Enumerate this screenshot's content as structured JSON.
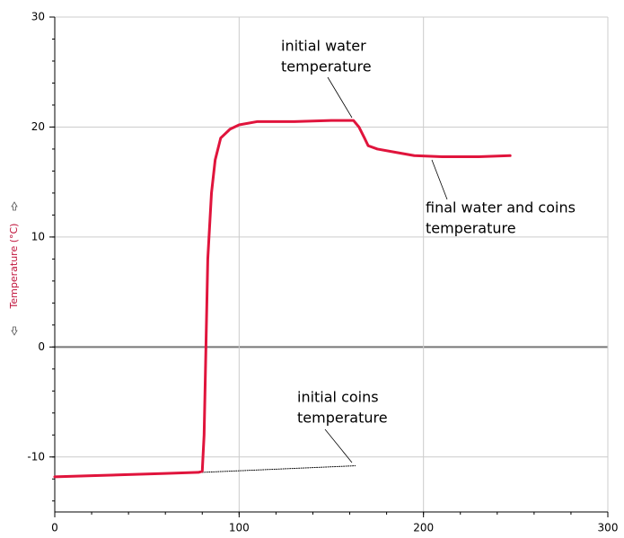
{
  "chart_data": {
    "type": "line",
    "ylabel": "Temperature (°C)",
    "xlim": [
      0,
      300
    ],
    "xticks": [
      0,
      100,
      200,
      300
    ],
    "ylim": [
      -15,
      30
    ],
    "yticks": [
      -10,
      0,
      10,
      20,
      30
    ],
    "grid": true,
    "series": [
      {
        "color": "#e0143c",
        "x": [
          0,
          20,
          40,
          60,
          78,
          80,
          81,
          82,
          83,
          85,
          87,
          90,
          95,
          100,
          110,
          130,
          150,
          162,
          165,
          168,
          170,
          175,
          185,
          195,
          210,
          230,
          247
        ],
        "values": [
          -11.8,
          -11.7,
          -11.6,
          -11.5,
          -11.4,
          -11.3,
          -8,
          0,
          8,
          14,
          17,
          19,
          19.8,
          20.2,
          20.5,
          20.5,
          20.6,
          20.6,
          20,
          19,
          18.3,
          18,
          17.7,
          17.4,
          17.3,
          17.3,
          17.4
        ]
      },
      {
        "color": "#000000",
        "dotted": true,
        "x": [
          80,
          163
        ],
        "values": [
          -11.4,
          -10.8
        ]
      }
    ],
    "annotations": [
      {
        "text": [
          "initial water",
          "temperature"
        ]
      },
      {
        "text": [
          "final water and coins",
          "temperature"
        ]
      },
      {
        "text": [
          "initial coins",
          "temperature"
        ]
      }
    ]
  }
}
